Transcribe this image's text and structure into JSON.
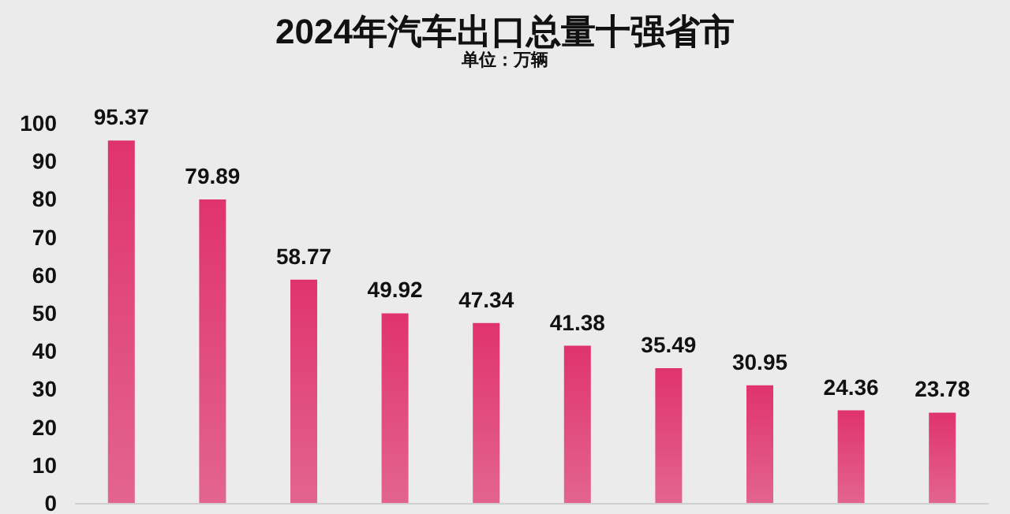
{
  "chart_data": {
    "type": "bar",
    "title": "2024年汽车出口总量十强省市",
    "subtitle": "单位：万辆",
    "categories": [
      null,
      null,
      null,
      null,
      null,
      null,
      null,
      null,
      null,
      null
    ],
    "values": [
      95.37,
      79.89,
      58.77,
      49.92,
      47.34,
      41.38,
      35.49,
      30.95,
      24.36,
      23.78
    ],
    "color": "#e0336e",
    "ylim": [
      0,
      100
    ],
    "yticks": [
      0,
      10,
      20,
      30,
      40,
      50,
      60,
      70,
      80,
      90,
      100
    ],
    "grid": false,
    "data_labels": true,
    "tick_labels": "y"
  }
}
